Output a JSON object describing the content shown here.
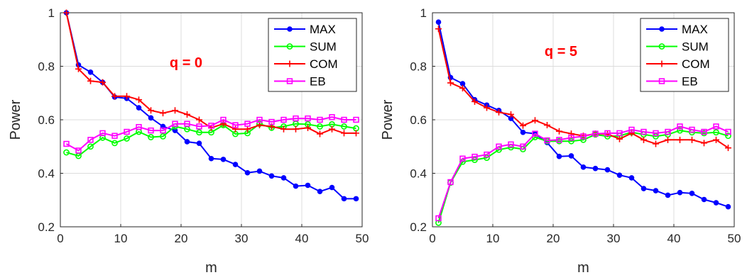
{
  "chart_data": [
    {
      "type": "line",
      "annotation": "q = 0",
      "xlabel": "m",
      "ylabel": "Power",
      "xlim": [
        0,
        50
      ],
      "ylim": [
        0.2,
        1
      ],
      "xticks": [
        0,
        10,
        20,
        30,
        40,
        50
      ],
      "yticks": [
        0.2,
        0.4,
        0.6,
        0.8,
        1
      ],
      "xtick_labels": [
        "0",
        "10",
        "20",
        "30",
        "40",
        "50"
      ],
      "ytick_labels": [
        "0.2",
        "0.4",
        "0.6",
        "0.8",
        "1"
      ],
      "grid": true,
      "legend_position": "top-right",
      "x": [
        1,
        3,
        5,
        7,
        9,
        11,
        13,
        15,
        17,
        19,
        21,
        23,
        25,
        27,
        29,
        31,
        33,
        35,
        37,
        39,
        41,
        43,
        45,
        47,
        49
      ],
      "series": [
        {
          "name": "MAX",
          "color": "#0000ff",
          "marker": "circle-filled",
          "values": [
            1.0,
            0.805,
            0.778,
            0.74,
            0.685,
            0.68,
            0.645,
            0.607,
            0.575,
            0.56,
            0.518,
            0.512,
            0.455,
            0.452,
            0.433,
            0.402,
            0.408,
            0.39,
            0.383,
            0.352,
            0.355,
            0.332,
            0.347,
            0.305,
            0.305
          ]
        },
        {
          "name": "SUM",
          "color": "#00ff00",
          "marker": "circle-open",
          "values": [
            0.478,
            0.465,
            0.5,
            0.533,
            0.513,
            0.53,
            0.555,
            0.535,
            0.538,
            0.575,
            0.565,
            0.553,
            0.553,
            0.58,
            0.547,
            0.55,
            0.585,
            0.57,
            0.575,
            0.585,
            0.583,
            0.575,
            0.583,
            0.575,
            0.568
          ]
        },
        {
          "name": "COM",
          "color": "#ff0000",
          "marker": "plus",
          "values": [
            1.0,
            0.79,
            0.745,
            0.74,
            0.688,
            0.688,
            0.675,
            0.635,
            0.625,
            0.635,
            0.62,
            0.6,
            0.57,
            0.585,
            0.565,
            0.565,
            0.58,
            0.575,
            0.565,
            0.565,
            0.57,
            0.547,
            0.565,
            0.55,
            0.55
          ]
        },
        {
          "name": "EB",
          "color": "#ff00ff",
          "marker": "square-open",
          "values": [
            0.51,
            0.485,
            0.525,
            0.55,
            0.54,
            0.555,
            0.573,
            0.56,
            0.56,
            0.585,
            0.585,
            0.575,
            0.578,
            0.6,
            0.58,
            0.585,
            0.6,
            0.592,
            0.6,
            0.605,
            0.605,
            0.6,
            0.61,
            0.6,
            0.6
          ]
        }
      ]
    },
    {
      "type": "line",
      "annotation": "q = 5",
      "xlabel": "m",
      "ylabel": "Power",
      "xlim": [
        0,
        50
      ],
      "ylim": [
        0.2,
        1
      ],
      "xticks": [
        0,
        10,
        20,
        30,
        40,
        50
      ],
      "yticks": [
        0.2,
        0.4,
        0.6,
        0.8,
        1
      ],
      "xtick_labels": [
        "0",
        "10",
        "20",
        "30",
        "40",
        "50"
      ],
      "ytick_labels": [
        "0.2",
        "0.4",
        "0.6",
        "0.8",
        "1"
      ],
      "grid": true,
      "legend_position": "top-right",
      "x": [
        1,
        3,
        5,
        7,
        9,
        11,
        13,
        15,
        17,
        19,
        21,
        23,
        25,
        27,
        29,
        31,
        33,
        35,
        37,
        39,
        41,
        43,
        45,
        47,
        49
      ],
      "series": [
        {
          "name": "MAX",
          "color": "#0000ff",
          "marker": "circle-filled",
          "values": [
            0.965,
            0.758,
            0.735,
            0.675,
            0.655,
            0.635,
            0.605,
            0.553,
            0.548,
            0.515,
            0.463,
            0.465,
            0.423,
            0.418,
            0.413,
            0.393,
            0.383,
            0.343,
            0.335,
            0.318,
            0.328,
            0.325,
            0.302,
            0.29,
            0.275
          ]
        },
        {
          "name": "SUM",
          "color": "#00ff00",
          "marker": "circle-open",
          "values": [
            0.215,
            0.365,
            0.443,
            0.45,
            0.458,
            0.488,
            0.497,
            0.49,
            0.535,
            0.52,
            0.52,
            0.52,
            0.525,
            0.545,
            0.538,
            0.54,
            0.553,
            0.545,
            0.538,
            0.545,
            0.56,
            0.553,
            0.55,
            0.553,
            0.54
          ]
        },
        {
          "name": "COM",
          "color": "#ff0000",
          "marker": "plus",
          "values": [
            0.94,
            0.738,
            0.718,
            0.668,
            0.645,
            0.628,
            0.62,
            0.578,
            0.598,
            0.58,
            0.557,
            0.548,
            0.54,
            0.548,
            0.547,
            0.528,
            0.55,
            0.525,
            0.51,
            0.525,
            0.525,
            0.525,
            0.513,
            0.525,
            0.495
          ]
        },
        {
          "name": "EB",
          "color": "#ff00ff",
          "marker": "square-open",
          "values": [
            0.232,
            0.367,
            0.455,
            0.462,
            0.47,
            0.5,
            0.508,
            0.5,
            0.548,
            0.523,
            0.525,
            0.533,
            0.538,
            0.548,
            0.55,
            0.55,
            0.563,
            0.555,
            0.55,
            0.555,
            0.575,
            0.563,
            0.555,
            0.575,
            0.555
          ]
        }
      ]
    }
  ]
}
